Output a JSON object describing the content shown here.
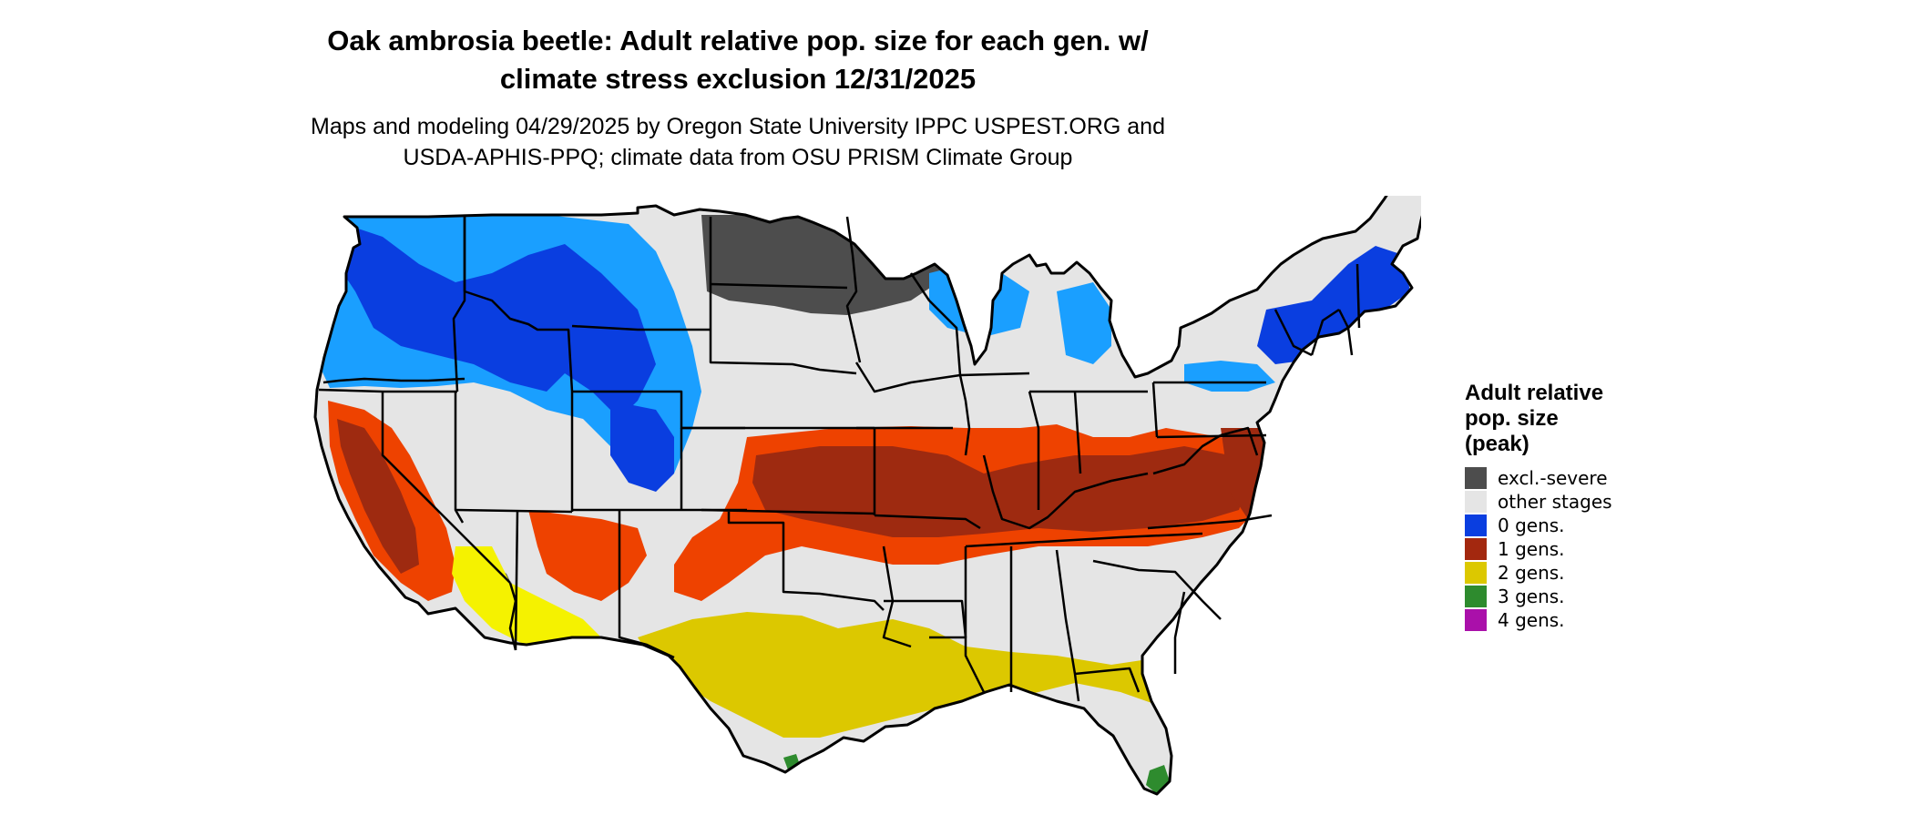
{
  "title": {
    "line1": "Oak ambrosia beetle: Adult relative pop. size for each gen. w/",
    "line2": "climate stress exclusion 12/31/2025"
  },
  "subtitle": {
    "line1": "Maps and modeling 04/29/2025 by Oregon State University IPPC USPEST.ORG and",
    "line2": "USDA-APHIS-PPQ; climate data from OSU PRISM Climate Group"
  },
  "legend": {
    "title_lines": [
      "Adult relative",
      "pop. size",
      "(peak)"
    ],
    "items": [
      {
        "label": "excl.-severe",
        "color": "#4d4d4d"
      },
      {
        "label": "other stages",
        "color": "#e5e5e5"
      },
      {
        "label": "0 gens.",
        "color": "#0a3ee0"
      },
      {
        "label": "1 gens.",
        "color": "#a3280f"
      },
      {
        "label": "2 gens.",
        "color": "#dcc800"
      },
      {
        "label": "3 gens.",
        "color": "#2e8b2e"
      },
      {
        "label": "4 gens.",
        "color": "#aa10aa"
      }
    ]
  },
  "map": {
    "colors": {
      "base": "#e5e5e5",
      "outline": "#000000",
      "excl_severe": "#4d4d4d",
      "gen0_dark": "#0a3ee0",
      "gen0_light": "#1a9fff",
      "gen1_dark": "#9e2a10",
      "gen1_light": "#ee4200",
      "gen2": "#dcc800",
      "gen2_light": "#f5f200",
      "gen3": "#2e8b2e"
    }
  }
}
